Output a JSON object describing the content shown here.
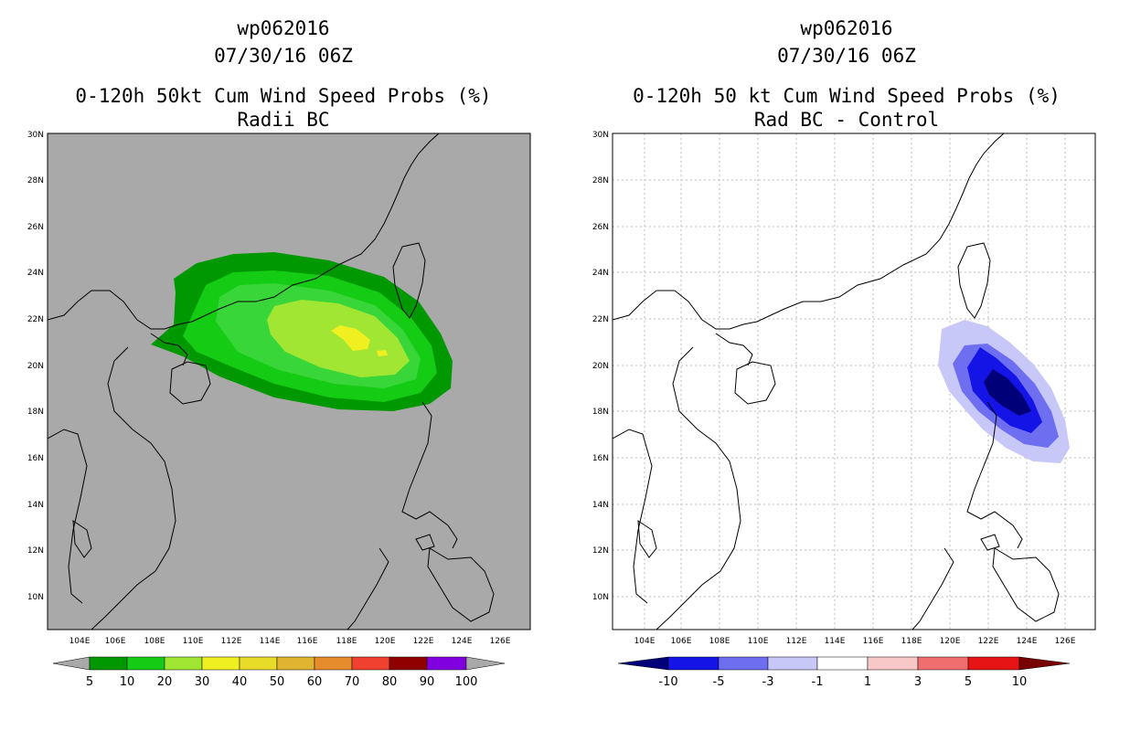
{
  "colors": {
    "land_bg_left": "#a9a9a9",
    "bg_right": "#ffffff",
    "coast": "#000000",
    "grid": "#b8b8b8",
    "prob_scale": [
      "#009800",
      "#13cc13",
      "#a0e632",
      "#f0f020",
      "#e8dc28",
      "#e0b430",
      "#e68c2c",
      "#f04030",
      "#900000",
      "#8000e0"
    ],
    "diff_scale": [
      "#000078",
      "#1414e6",
      "#6e6ef0",
      "#c8c8f8",
      "#ffffff",
      "#f8c8c8",
      "#f06e6e",
      "#e61414",
      "#780000"
    ],
    "cap_left": "#a9a9a9"
  },
  "left_panel": {
    "title_lines": [
      "wp062016",
      "07/30/16 06Z",
      "0-120h 50kt Cum Wind Speed Probs (%)",
      "Radii BC"
    ]
  },
  "right_panel": {
    "title_lines": [
      "wp062016",
      "07/30/16 06Z",
      "0-120h 50 kt Cum Wind Speed Probs (%)",
      "Rad BC - Control"
    ]
  },
  "map_axes": {
    "lat_labels": [
      "30N",
      "28N",
      "26N",
      "24N",
      "22N",
      "20N",
      "18N",
      "16N",
      "14N",
      "12N",
      "10N"
    ],
    "lon_labels": [
      "104E",
      "106E",
      "108E",
      "110E",
      "112E",
      "114E",
      "116E",
      "118E",
      "120E",
      "122E",
      "124E",
      "126E"
    ]
  },
  "left_colorbar": {
    "labels": [
      "5",
      "10",
      "20",
      "30",
      "40",
      "50",
      "60",
      "70",
      "80",
      "90",
      "100"
    ]
  },
  "right_colorbar": {
    "labels": [
      "-10",
      "-5",
      "-3",
      "-1",
      "1",
      "3",
      "5",
      "10"
    ]
  }
}
